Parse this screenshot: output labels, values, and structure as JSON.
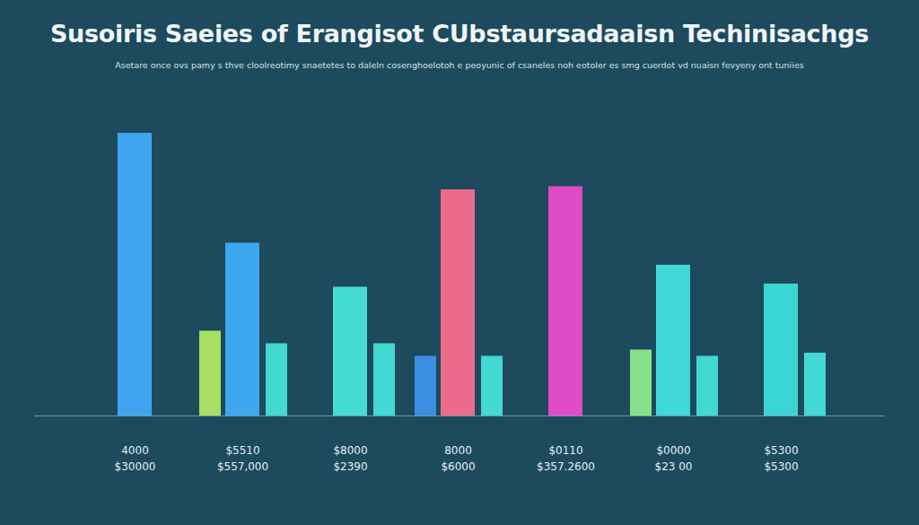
{
  "chart_data": {
    "type": "bar",
    "title": "Susoiris Saeies of Erangisot CUbstaursadaaisn Techinisachgs",
    "subtitle": "Asetare once ovs pamy s thve cloolreotimy snaetetes to daleln cosenghoelotoh e peoyunic of csaneles noh eotoler es smg cuerdot vd nuaisn fevyeny ont tuniies",
    "categories": [
      "4000\n$30000",
      "$5510\n$557,000",
      "$8000\n$2390",
      "8000\n$6000",
      "$0110\n$357.2600",
      "$0000\n$23 00",
      "$5300\n$5300"
    ],
    "series": [
      {
        "values": [
          null,
          27,
          null,
          19,
          null,
          21,
          null
        ],
        "colors": [
          null,
          "#a6df62",
          null,
          "#3a8fe2",
          null,
          "#86e08a",
          null
        ]
      },
      {
        "values": [
          90,
          55,
          41,
          72,
          73,
          48,
          42
        ],
        "colors": [
          "#3fa4ef",
          "#3ca8ef",
          "#45dcd6",
          "#ec6a8a",
          "#e04cc6",
          "#3fd8d8",
          "#3ad6d6"
        ]
      },
      {
        "values": [
          null,
          23,
          23,
          19,
          null,
          19,
          20
        ],
        "color": "#42d9d2"
      }
    ],
    "ylim": [
      0,
      100
    ],
    "tick_labels": "x",
    "grid": false,
    "data_labels": false
  }
}
